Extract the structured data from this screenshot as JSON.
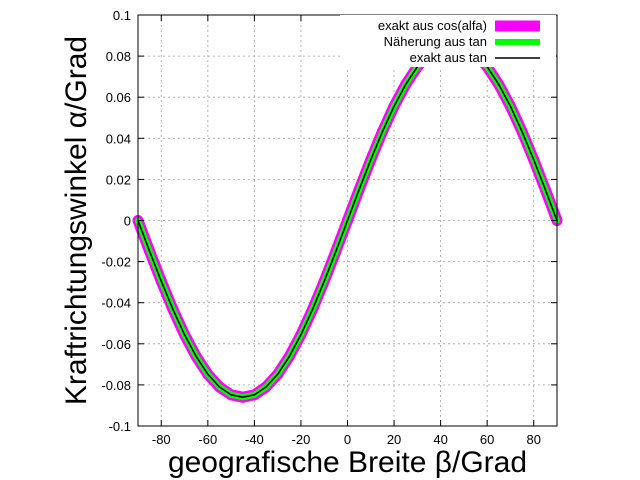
{
  "chart_data": {
    "type": "line",
    "xlabel": "geografische Breite β/Grad",
    "ylabel": "Kraftrichtungswinkel α/Grad",
    "xlim": [
      -90,
      90
    ],
    "ylim": [
      -0.1,
      0.1
    ],
    "xticks": [
      {
        "value": -80,
        "label": "-80"
      },
      {
        "value": -60,
        "label": "-60"
      },
      {
        "value": -40,
        "label": "-40"
      },
      {
        "value": -20,
        "label": "-20"
      },
      {
        "value": 0,
        "label": "0"
      },
      {
        "value": 20,
        "label": "20"
      },
      {
        "value": 40,
        "label": "40"
      },
      {
        "value": 60,
        "label": "60"
      },
      {
        "value": 80,
        "label": "80"
      }
    ],
    "yticks": [
      {
        "value": 0.1,
        "label": "0.1"
      },
      {
        "value": 0.08,
        "label": "0.08"
      },
      {
        "value": 0.06,
        "label": "0.06"
      },
      {
        "value": 0.04,
        "label": "0.04"
      },
      {
        "value": 0.02,
        "label": "0.02"
      },
      {
        "value": 0,
        "label": "0"
      },
      {
        "value": -0.02,
        "label": "-0.02"
      },
      {
        "value": -0.04,
        "label": "-0.04"
      },
      {
        "value": -0.06,
        "label": "-0.06"
      },
      {
        "value": -0.08,
        "label": "-0.08"
      },
      {
        "value": -0.1,
        "label": "-0.1"
      }
    ],
    "grid": true,
    "legend_position": "top-right",
    "x": [
      -90,
      -85,
      -80,
      -75,
      -70,
      -65,
      -60,
      -55,
      -50,
      -45,
      -40,
      -35,
      -30,
      -25,
      -20,
      -15,
      -10,
      -5,
      0,
      5,
      10,
      15,
      20,
      25,
      30,
      35,
      40,
      45,
      50,
      55,
      60,
      65,
      70,
      75,
      80,
      85,
      90
    ],
    "series": [
      {
        "name": "exakt aus cos(alfa)",
        "color": "#ff00ff",
        "values": [
          0.0,
          -0.015,
          -0.0296,
          -0.0432,
          -0.0556,
          -0.0662,
          -0.0748,
          -0.081,
          -0.0848,
          -0.086,
          -0.0848,
          -0.081,
          -0.0748,
          -0.0662,
          -0.0556,
          -0.0432,
          -0.0296,
          -0.015,
          0.0,
          0.015,
          0.0296,
          0.0432,
          0.0556,
          0.0662,
          0.0748,
          0.081,
          0.0848,
          0.086,
          0.0848,
          0.081,
          0.0748,
          0.0662,
          0.0556,
          0.0432,
          0.0296,
          0.015,
          0.0
        ]
      },
      {
        "name": "Näherung aus tan",
        "color": "#00ff00",
        "values": [
          0.0,
          -0.015,
          -0.0296,
          -0.0432,
          -0.0556,
          -0.0662,
          -0.0748,
          -0.081,
          -0.0848,
          -0.086,
          -0.0848,
          -0.081,
          -0.0748,
          -0.0662,
          -0.0556,
          -0.0432,
          -0.0296,
          -0.015,
          0.0,
          0.015,
          0.0296,
          0.0432,
          0.0556,
          0.0662,
          0.0748,
          0.081,
          0.0848,
          0.086,
          0.0848,
          0.081,
          0.0748,
          0.0662,
          0.0556,
          0.0432,
          0.0296,
          0.015,
          0.0
        ]
      },
      {
        "name": "exakt aus tan",
        "color": "#000000",
        "values": [
          0.0,
          -0.015,
          -0.0296,
          -0.0432,
          -0.0556,
          -0.0662,
          -0.0748,
          -0.081,
          -0.0848,
          -0.086,
          -0.0848,
          -0.081,
          -0.0748,
          -0.0662,
          -0.0556,
          -0.0432,
          -0.0296,
          -0.015,
          0.0,
          0.015,
          0.0296,
          0.0432,
          0.0556,
          0.0662,
          0.0748,
          0.081,
          0.0848,
          0.086,
          0.0848,
          0.081,
          0.0748,
          0.0662,
          0.0556,
          0.0432,
          0.0296,
          0.015,
          0.0
        ]
      }
    ]
  }
}
